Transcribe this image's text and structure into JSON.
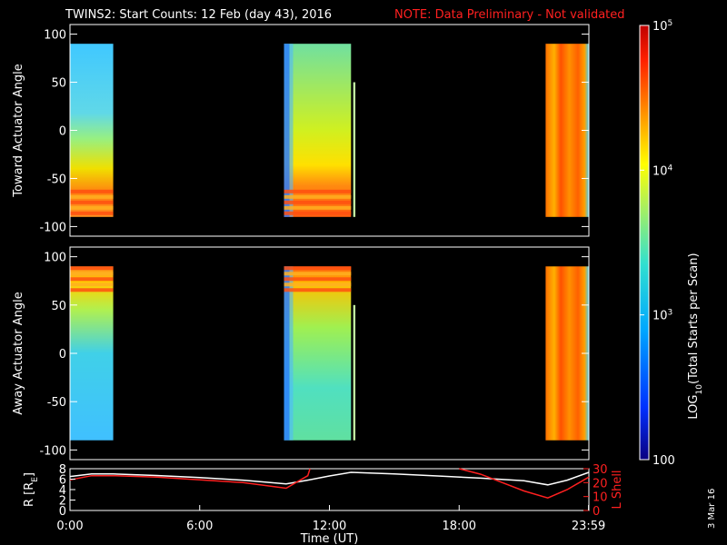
{
  "header": {
    "title": "TWINS2: Start Counts: 12 Feb (day  43), 2016",
    "note": "NOTE: Data Preliminary - Not validated",
    "stamp": "3 Mar 16"
  },
  "colors": {
    "background": "#000000",
    "axis": "#ffffff",
    "note": "#ff2020",
    "r_line": "#ffffff",
    "lshell_line": "#ff2020"
  },
  "chart_data": [
    {
      "type": "heatmap",
      "ylabel": "Toward Actuator Angle",
      "ylim": [
        -110,
        110
      ],
      "yticks": [
        "100",
        "50",
        "0",
        "-50",
        "-100"
      ],
      "ytick_values": [
        100,
        50,
        0,
        -50,
        -100
      ],
      "xlim": [
        0,
        24
      ],
      "xticks_visible": false,
      "data_segments": [
        {
          "t_start": 0.0,
          "t_end": 2.0,
          "angle_range": [
            -90,
            90
          ],
          "level": "low-mid (~10^3)",
          "low_angle_edge": "elevated, mixed"
        },
        {
          "t_start": 9.9,
          "t_end": 13.0,
          "angle_range": [
            -90,
            90
          ],
          "level": "mid (~10^3.5-10^4)",
          "low_angle_edge": "high, banded"
        },
        {
          "t_start": 13.1,
          "t_end": 13.2,
          "angle_range": [
            -90,
            50
          ],
          "level": "line marker"
        },
        {
          "t_start": 22.0,
          "t_end": 24.0,
          "angle_range": [
            -90,
            90
          ],
          "level": "high (~10^4.5)"
        }
      ]
    },
    {
      "type": "heatmap",
      "ylabel": "Away Actuator Angle",
      "ylim": [
        -110,
        110
      ],
      "yticks": [
        "100",
        "50",
        "0",
        "-50",
        "-100"
      ],
      "ytick_values": [
        100,
        50,
        0,
        -50,
        -100
      ],
      "xlim": [
        0,
        24
      ],
      "xticks_visible": false,
      "data_segments": [
        {
          "t_start": 0.0,
          "t_end": 2.0,
          "angle_range": [
            -90,
            90
          ],
          "level": "low-mid (~10^3)",
          "high_angle_edge": "elevated"
        },
        {
          "t_start": 9.9,
          "t_end": 13.0,
          "angle_range": [
            -90,
            90
          ],
          "level": "mid (~10^3.5)",
          "high_angle_edge": "high, banded"
        },
        {
          "t_start": 13.1,
          "t_end": 13.2,
          "angle_range": [
            -90,
            50
          ],
          "level": "line marker"
        },
        {
          "t_start": 22.0,
          "t_end": 24.0,
          "angle_range": [
            -90,
            90
          ],
          "level": "high (~10^4.5)"
        }
      ]
    },
    {
      "type": "line",
      "ylabel": "R [R",
      "ylabel_sub": "E",
      "ylabel_end": "]",
      "y2label": "L Shell",
      "xlabel": "Time (UT)",
      "xlim": [
        0,
        24
      ],
      "ylim": [
        0,
        8
      ],
      "y2lim": [
        0,
        30
      ],
      "yticks": [
        "0",
        "2",
        "4",
        "6",
        "8"
      ],
      "ytick_values": [
        0,
        2,
        4,
        6,
        8
      ],
      "y2ticks": [
        "0",
        "10",
        "20",
        "30"
      ],
      "y2tick_values": [
        0,
        10,
        20,
        30
      ],
      "xticks": [
        "0:00",
        "6:00",
        "12:00",
        "18:00",
        "23:59"
      ],
      "xtick_values": [
        0,
        6,
        12,
        18,
        23.983
      ],
      "series": [
        {
          "axis": "left",
          "x": [
            0,
            1,
            2,
            4,
            6,
            8,
            10,
            11,
            12,
            13,
            15,
            17,
            19,
            21,
            22.1,
            23,
            24
          ],
          "y": [
            6.5,
            7.0,
            7.0,
            6.7,
            6.3,
            5.8,
            5.1,
            5.8,
            6.6,
            7.3,
            7.0,
            6.6,
            6.2,
            5.7,
            4.9,
            5.8,
            7.3
          ]
        },
        {
          "axis": "right",
          "x": [
            0,
            1,
            2,
            4,
            6,
            8,
            10,
            11,
            11.1
          ],
          "y": [
            22,
            25,
            25,
            24,
            22,
            20,
            16,
            25,
            30
          ],
          "color_ref": "lshell"
        },
        {
          "axis": "right",
          "x": [
            18.0,
            19,
            20,
            21,
            22.1,
            23,
            24
          ],
          "y": [
            30,
            26,
            20,
            14,
            9,
            15,
            24
          ],
          "color_ref": "lshell"
        }
      ]
    }
  ],
  "colorbar": {
    "label_prefix": "LOG",
    "label_sub": "10",
    "label_suffix": "(Total Starts per Scan)",
    "scale": "log",
    "range": [
      100,
      100000
    ],
    "ticks": [
      {
        "value": 100,
        "label": "100"
      },
      {
        "value": 1000,
        "label_base": "10",
        "label_exp": "3"
      },
      {
        "value": 10000,
        "label_base": "10",
        "label_exp": "4"
      },
      {
        "value": 100000,
        "label_base": "10",
        "label_exp": "5"
      }
    ]
  }
}
